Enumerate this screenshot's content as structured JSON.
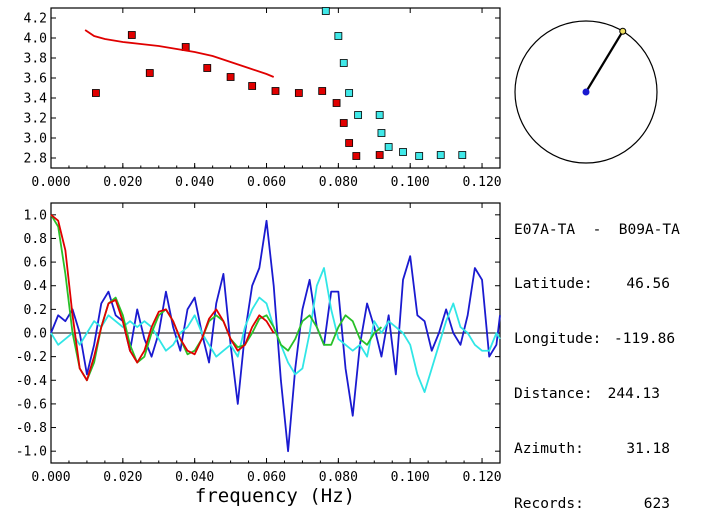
{
  "station_pair": "E07A-TA  -  B09A-TA",
  "info": [
    {
      "label": "Latitude:",
      "value": "46.56"
    },
    {
      "label": "Longitude:",
      "value": "-119.86"
    },
    {
      "label": "Distance:",
      "value": "244.13"
    },
    {
      "label": "Azimuth:",
      "value": "31.18"
    },
    {
      "label": "Records:",
      "value": "623"
    }
  ],
  "chart_data": [
    {
      "type": "scatter",
      "xlim": [
        0.0,
        0.125
      ],
      "ylim": [
        2.7,
        4.3
      ],
      "x_ticks": [
        "0.000",
        "0.020",
        "0.040",
        "0.060",
        "0.080",
        "0.100",
        "0.120"
      ],
      "y_ticks": [
        "2.8",
        "3.0",
        "3.2",
        "3.4",
        "3.6",
        "3.8",
        "4.0",
        "4.2"
      ],
      "colors": {
        "red_points": "#e00000",
        "cyan_points": "#40e8e8",
        "curve": "#e00000"
      },
      "series": [
        {
          "marker": "square",
          "color": "red",
          "x": [
            0.0125,
            0.0225,
            0.0275,
            0.0375,
            0.0435,
            0.05,
            0.056,
            0.0625,
            0.069,
            0.0755,
            0.0795,
            0.0815,
            0.083,
            0.085,
            0.0915
          ],
          "y": [
            3.45,
            4.03,
            3.65,
            3.91,
            3.7,
            3.61,
            3.52,
            3.47,
            3.45,
            3.47,
            3.35,
            3.15,
            2.95,
            2.82,
            2.83
          ]
        },
        {
          "marker": "square",
          "color": "cyan",
          "x": [
            0.0765,
            0.08,
            0.0815,
            0.083,
            0.0855,
            0.0915,
            0.092,
            0.094,
            0.098,
            0.1025,
            0.1085,
            0.1145
          ],
          "y": [
            4.27,
            4.02,
            3.75,
            3.45,
            3.23,
            3.23,
            3.05,
            2.91,
            2.86,
            2.82,
            2.83,
            2.83
          ]
        },
        {
          "type": "line",
          "color": "red",
          "x": [
            0.0095,
            0.012,
            0.015,
            0.02,
            0.025,
            0.03,
            0.035,
            0.04,
            0.045,
            0.05,
            0.055,
            0.06,
            0.062
          ],
          "y": [
            4.08,
            4.02,
            3.99,
            3.96,
            3.94,
            3.92,
            3.89,
            3.86,
            3.82,
            3.76,
            3.7,
            3.64,
            3.61
          ]
        }
      ]
    },
    {
      "type": "line",
      "xlabel": "frequency (Hz)",
      "xlim": [
        0.0,
        0.125
      ],
      "ylim": [
        -1.1,
        1.1
      ],
      "x_ticks": [
        "0.000",
        "0.020",
        "0.040",
        "0.060",
        "0.080",
        "0.100",
        "0.120"
      ],
      "y_ticks": [
        "1.0",
        "0.8",
        "0.6",
        "0.4",
        "0.2",
        "0.0",
        "-0.2",
        "-0.4",
        "-0.6",
        "-0.8",
        "-1.0"
      ],
      "colors": {
        "blue": "#1a1ad0",
        "cyan": "#30e6e6",
        "green": "#28c028",
        "red": "#e00000",
        "zero_line": "#000000"
      },
      "series": [
        {
          "color": "blue",
          "x": [
            0.0,
            0.002,
            0.004,
            0.006,
            0.008,
            0.01,
            0.012,
            0.014,
            0.016,
            0.018,
            0.02,
            0.022,
            0.024,
            0.026,
            0.028,
            0.03,
            0.032,
            0.034,
            0.036,
            0.038,
            0.04,
            0.042,
            0.044,
            0.046,
            0.048,
            0.05,
            0.052,
            0.054,
            0.056,
            0.058,
            0.06,
            0.062,
            0.064,
            0.066,
            0.068,
            0.07,
            0.072,
            0.074,
            0.076,
            0.078,
            0.08,
            0.082,
            0.084,
            0.086,
            0.088,
            0.09,
            0.092,
            0.094,
            0.096,
            0.098,
            0.1,
            0.102,
            0.104,
            0.106,
            0.108,
            0.11,
            0.112,
            0.114,
            0.116,
            0.118,
            0.12,
            0.122,
            0.124,
            0.125
          ],
          "y": [
            0.0,
            0.15,
            0.1,
            0.2,
            0.0,
            -0.35,
            -0.1,
            0.25,
            0.35,
            0.15,
            0.1,
            -0.15,
            0.2,
            -0.05,
            -0.2,
            0.0,
            0.35,
            0.05,
            -0.15,
            0.2,
            0.3,
            0.0,
            -0.25,
            0.25,
            0.5,
            -0.1,
            -0.6,
            0.0,
            0.4,
            0.55,
            0.95,
            0.4,
            -0.4,
            -1.0,
            -0.3,
            0.2,
            0.45,
            0.05,
            -0.1,
            0.35,
            0.35,
            -0.3,
            -0.7,
            -0.1,
            0.25,
            0.05,
            -0.2,
            0.15,
            -0.35,
            0.45,
            0.65,
            0.15,
            0.1,
            -0.15,
            0.0,
            0.2,
            0.0,
            -0.1,
            0.15,
            0.55,
            0.45,
            -0.2,
            -0.1,
            0.15
          ]
        },
        {
          "color": "cyan",
          "x": [
            0.0,
            0.002,
            0.004,
            0.006,
            0.008,
            0.01,
            0.012,
            0.014,
            0.016,
            0.018,
            0.02,
            0.022,
            0.024,
            0.026,
            0.028,
            0.03,
            0.032,
            0.034,
            0.036,
            0.038,
            0.04,
            0.042,
            0.044,
            0.046,
            0.048,
            0.05,
            0.052,
            0.054,
            0.056,
            0.058,
            0.06,
            0.062,
            0.064,
            0.066,
            0.068,
            0.07,
            0.072,
            0.074,
            0.076,
            0.078,
            0.08,
            0.082,
            0.084,
            0.086,
            0.088,
            0.09,
            0.092,
            0.094,
            0.096,
            0.098,
            0.1,
            0.102,
            0.104,
            0.106,
            0.108,
            0.11,
            0.112,
            0.114,
            0.116,
            0.118,
            0.12,
            0.122,
            0.124,
            0.125
          ],
          "y": [
            0.0,
            -0.1,
            -0.05,
            0.0,
            -0.1,
            0.0,
            0.1,
            0.05,
            0.15,
            0.1,
            0.05,
            0.1,
            0.05,
            0.1,
            0.05,
            -0.05,
            -0.15,
            -0.1,
            0.0,
            0.05,
            0.15,
            0.0,
            -0.1,
            -0.2,
            -0.15,
            -0.1,
            -0.2,
            0.05,
            0.2,
            0.3,
            0.25,
            0.05,
            -0.1,
            -0.25,
            -0.35,
            -0.3,
            0.0,
            0.4,
            0.55,
            0.2,
            -0.05,
            -0.1,
            -0.15,
            -0.1,
            -0.2,
            0.1,
            0.0,
            0.1,
            0.05,
            0.0,
            -0.1,
            -0.35,
            -0.5,
            -0.3,
            -0.1,
            0.1,
            0.25,
            0.05,
            0.0,
            -0.1,
            -0.15,
            -0.15,
            0.0,
            -0.05
          ]
        },
        {
          "color": "green",
          "x": [
            0.0,
            0.002,
            0.004,
            0.006,
            0.008,
            0.01,
            0.012,
            0.014,
            0.016,
            0.018,
            0.02,
            0.022,
            0.024,
            0.026,
            0.028,
            0.03,
            0.032,
            0.034,
            0.036,
            0.038,
            0.04,
            0.042,
            0.044,
            0.046,
            0.048,
            0.05,
            0.052,
            0.054,
            0.056,
            0.058,
            0.06,
            0.062,
            0.064,
            0.066,
            0.068,
            0.07,
            0.072,
            0.074,
            0.076,
            0.078,
            0.08,
            0.082,
            0.084,
            0.086,
            0.088,
            0.09,
            0.092
          ],
          "y": [
            1.0,
            0.9,
            0.5,
            0.0,
            -0.3,
            -0.4,
            -0.25,
            0.05,
            0.25,
            0.3,
            0.15,
            -0.1,
            -0.25,
            -0.2,
            0.0,
            0.15,
            0.2,
            0.1,
            -0.05,
            -0.18,
            -0.15,
            -0.05,
            0.1,
            0.15,
            0.1,
            -0.05,
            -0.12,
            -0.1,
            0.0,
            0.12,
            0.15,
            0.05,
            -0.1,
            -0.15,
            -0.05,
            0.1,
            0.15,
            0.05,
            -0.1,
            -0.1,
            0.05,
            0.15,
            0.1,
            -0.05,
            -0.1,
            0.0,
            0.05
          ]
        },
        {
          "color": "red",
          "x": [
            0.0,
            0.002,
            0.004,
            0.006,
            0.008,
            0.01,
            0.012,
            0.014,
            0.016,
            0.018,
            0.02,
            0.022,
            0.024,
            0.026,
            0.028,
            0.03,
            0.032,
            0.034,
            0.036,
            0.038,
            0.04,
            0.042,
            0.044,
            0.046,
            0.048,
            0.05,
            0.052,
            0.054,
            0.056,
            0.058,
            0.06,
            0.062
          ],
          "y": [
            1.0,
            0.95,
            0.7,
            0.15,
            -0.3,
            -0.4,
            -0.2,
            0.05,
            0.25,
            0.28,
            0.1,
            -0.15,
            -0.25,
            -0.15,
            0.05,
            0.18,
            0.2,
            0.1,
            -0.05,
            -0.15,
            -0.18,
            -0.05,
            0.12,
            0.2,
            0.1,
            -0.05,
            -0.15,
            -0.1,
            0.05,
            0.15,
            0.1,
            0.0
          ]
        }
      ]
    }
  ],
  "dial": {
    "azimuth_deg": 31.18,
    "colors": {
      "needle": "#000000",
      "center": "#1a1ad0",
      "tip": "#f0e060"
    }
  }
}
